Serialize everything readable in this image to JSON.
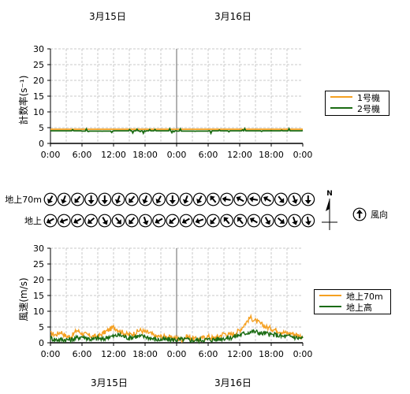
{
  "dates_top": [
    "3月15日",
    "3月16日"
  ],
  "dates_bottom": [
    "3月15日",
    "3月16日"
  ],
  "time_ticks": [
    "0:00",
    "6:00",
    "12:00",
    "18:00",
    "0:00",
    "6:00",
    "12:00",
    "18:00",
    "0:00"
  ],
  "colors": {
    "series1": "#f5a020",
    "series2": "#1a6b12",
    "grid": "#c8c8c8",
    "divider": "#666666"
  },
  "chart_data": [
    {
      "type": "line",
      "ylabel": "計数率(s⁻¹)",
      "ylim": [
        0,
        30
      ],
      "yticks": [
        0,
        5,
        10,
        15,
        20,
        25,
        30
      ],
      "xlim_hours": [
        0,
        48
      ],
      "grid": true,
      "legend_position": "right",
      "series": [
        {
          "name": "1号機",
          "values": [
            4.5,
            4.5,
            4.5,
            4.5,
            4.5,
            4.5,
            4.5,
            4.5,
            4.5
          ]
        },
        {
          "name": "2号機",
          "values": [
            4.0,
            3.9,
            4.0,
            4.0,
            3.9,
            4.0,
            4.0,
            4.0,
            4.1
          ]
        }
      ]
    },
    {
      "type": "direction-arrows",
      "rows": [
        {
          "label": "地上70m",
          "directions_deg": [
            210,
            200,
            220,
            180,
            180,
            200,
            220,
            200,
            210,
            180,
            200,
            210,
            320,
            280,
            300,
            280,
            300,
            140,
            160,
            180
          ]
        },
        {
          "label": "地上",
          "directions_deg": [
            240,
            250,
            240,
            230,
            150,
            140,
            220,
            160,
            240,
            230,
            240,
            250,
            220,
            320,
            320,
            300,
            150,
            130,
            160,
            170
          ]
        }
      ],
      "north_label": "N",
      "legend_label": "風向"
    },
    {
      "type": "line",
      "ylabel": "風速(m/s)",
      "ylim": [
        0,
        30
      ],
      "yticks": [
        0,
        5,
        10,
        15,
        20,
        25,
        30
      ],
      "xlim_hours": [
        0,
        48
      ],
      "grid": true,
      "legend_position": "right",
      "series": [
        {
          "name": "地上70m",
          "x_hours": [
            0,
            1,
            2,
            3,
            4,
            5,
            6,
            7,
            8,
            9,
            10,
            11,
            12,
            13,
            14,
            15,
            16,
            17,
            18,
            19,
            20,
            21,
            22,
            23,
            24,
            25,
            26,
            27,
            28,
            29,
            30,
            31,
            32,
            33,
            34,
            35,
            36,
            37,
            38,
            39,
            40,
            41,
            42,
            43,
            44,
            45,
            46,
            47,
            48
          ],
          "values": [
            3,
            2.5,
            3.5,
            2,
            2,
            4,
            3,
            2.5,
            2,
            2,
            3,
            4,
            5,
            4,
            3,
            2.5,
            3,
            4,
            3.5,
            3,
            2,
            2,
            2,
            1.5,
            1.5,
            1,
            2,
            1.5,
            1,
            1.5,
            2,
            1.5,
            2,
            3,
            2.5,
            3,
            4,
            6,
            8,
            7,
            6,
            5,
            4.5,
            4,
            3.5,
            3,
            3,
            2.5,
            2
          ]
        },
        {
          "name": "地上高",
          "x_hours": [
            0,
            1,
            2,
            3,
            4,
            5,
            6,
            7,
            8,
            9,
            10,
            11,
            12,
            13,
            14,
            15,
            16,
            17,
            18,
            19,
            20,
            21,
            22,
            23,
            24,
            25,
            26,
            27,
            28,
            29,
            30,
            31,
            32,
            33,
            34,
            35,
            36,
            37,
            38,
            39,
            40,
            41,
            42,
            43,
            44,
            45,
            46,
            47,
            48
          ],
          "values": [
            1.5,
            1,
            1,
            1,
            1,
            1.5,
            2,
            1.5,
            1,
            1.5,
            1,
            2,
            2,
            2.5,
            2,
            1.5,
            2,
            2,
            2,
            1.5,
            1,
            1,
            1,
            1,
            1,
            1,
            1,
            0.8,
            0.8,
            1,
            1,
            1,
            1.2,
            1.5,
            1.5,
            2,
            2.5,
            3,
            3.5,
            3.5,
            3,
            3,
            2.5,
            2.5,
            2,
            2,
            2,
            1.5,
            1.5
          ]
        }
      ]
    }
  ]
}
